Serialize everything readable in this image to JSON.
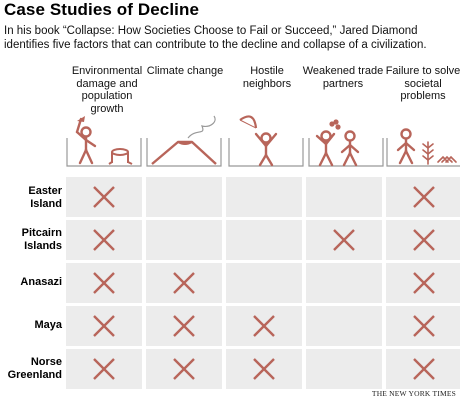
{
  "title": "Case Studies of Decline",
  "subtitle": "In his book “Collapse: How Societies Choose to Fail or Succeed,” Jared Diamond identifies five factors that can contribute to the decline and collapse of a civilization.",
  "factors": [
    {
      "label": "Environmental damage and population growth",
      "icon": "person-with-axe-and-stump-icon"
    },
    {
      "label": "Climate change",
      "icon": "volcano-icon"
    },
    {
      "label": "Hostile neighbors",
      "icon": "person-with-bow-icon"
    },
    {
      "label": "Weakened trade partners",
      "icon": "two-people-trading-icon"
    },
    {
      "label": "Failure to solve societal problems",
      "icon": "person-with-plants-icon"
    }
  ],
  "rows": [
    {
      "name": "Easter Island",
      "marks": [
        true,
        false,
        false,
        false,
        true
      ]
    },
    {
      "name": "Pitcairn Islands",
      "marks": [
        true,
        false,
        false,
        true,
        true
      ]
    },
    {
      "name": "Anasazi",
      "marks": [
        true,
        true,
        false,
        false,
        true
      ]
    },
    {
      "name": "Maya",
      "marks": [
        true,
        true,
        true,
        false,
        true
      ]
    },
    {
      "name": "Norse Greenland",
      "marks": [
        true,
        true,
        true,
        false,
        true
      ]
    }
  ],
  "credit": "THE NEW YORK TIMES",
  "colors": {
    "mark": "#b8655a",
    "cell": "#ececec",
    "icon": "#b8655a",
    "frame": "#999999"
  }
}
